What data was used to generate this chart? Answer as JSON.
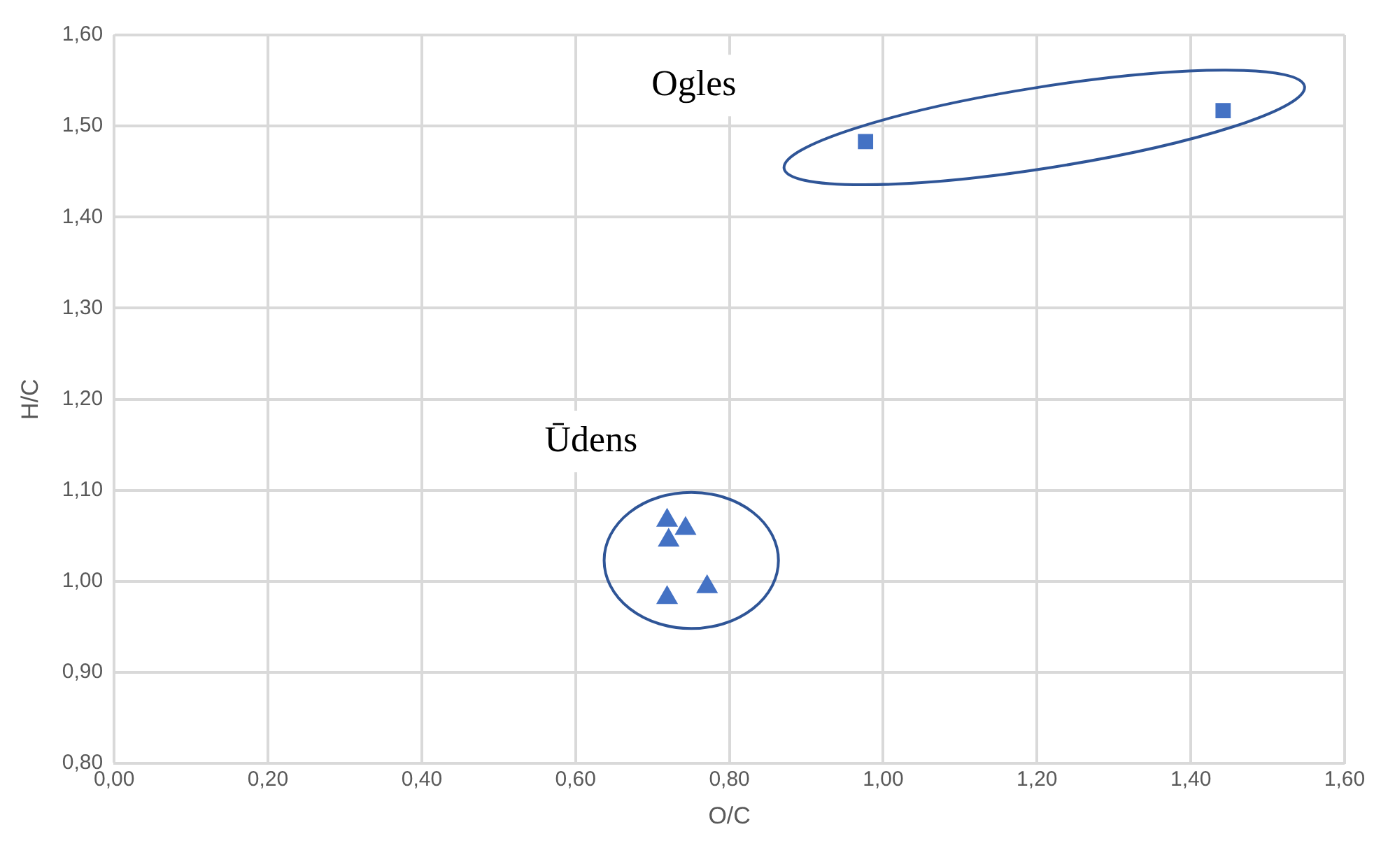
{
  "chart_data": {
    "type": "scatter",
    "xlabel": "O/C",
    "ylabel": "H/C",
    "series": [
      {
        "color": "#4472c4",
        "marker": "square",
        "x": [
          0.977,
          1.442
        ],
        "values": [
          1.483,
          1.517
        ]
      },
      {
        "color": "#4472c4",
        "marker": "triangle",
        "x": [
          0.719,
          0.721,
          0.743,
          0.719,
          0.771
        ],
        "values": [
          1.067,
          1.045,
          1.058,
          0.982,
          0.994
        ]
      }
    ],
    "xlim": [
      0,
      1.6
    ],
    "xticks": [
      {
        "value": 0,
        "label": "0,00"
      },
      {
        "value": 0.2,
        "label": "0,20"
      },
      {
        "value": 0.4,
        "label": "0,40"
      },
      {
        "value": 0.6,
        "label": "0,60"
      },
      {
        "value": 0.8,
        "label": "0,80"
      },
      {
        "value": 1.0,
        "label": "1,00"
      },
      {
        "value": 1.2,
        "label": "1,20"
      },
      {
        "value": 1.4,
        "label": "1,40"
      },
      {
        "value": 1.6,
        "label": "1,60"
      }
    ],
    "ylim": [
      0.8,
      1.6
    ],
    "yticks": [
      {
        "value": 0.8,
        "label": "0,80"
      },
      {
        "value": 0.9,
        "label": "0,90"
      },
      {
        "value": 1.0,
        "label": "1,00"
      },
      {
        "value": 1.1,
        "label": "1,10"
      },
      {
        "value": 1.2,
        "label": "1,20"
      },
      {
        "value": 1.3,
        "label": "1,30"
      },
      {
        "value": 1.4,
        "label": "1,40"
      },
      {
        "value": 1.5,
        "label": "1,50"
      },
      {
        "value": 1.6,
        "label": "1,60"
      }
    ],
    "grid": true,
    "annotations": [
      "Ogles",
      "Ūdens"
    ]
  }
}
